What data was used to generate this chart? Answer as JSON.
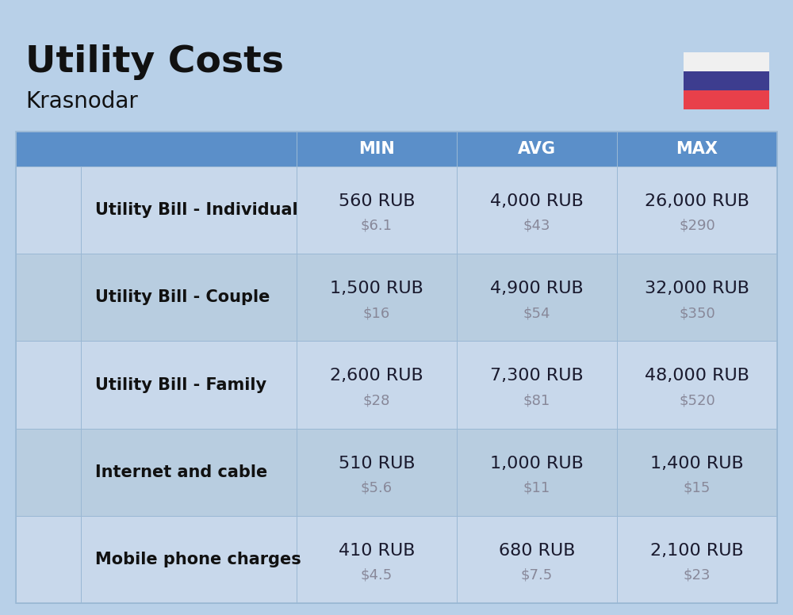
{
  "title": "Utility Costs",
  "subtitle": "Krasnodar",
  "background_color": "#b8d0e8",
  "header_bg_color": "#5b8fc9",
  "header_text_color": "#ffffff",
  "row_color_odd": "#c8d8eb",
  "row_color_even": "#b8cde0",
  "cell_border_color": "#9ab8d4",
  "columns": [
    "MIN",
    "AVG",
    "MAX"
  ],
  "rows": [
    {
      "label": "Utility Bill - Individual",
      "min_rub": "560 RUB",
      "min_usd": "$6.1",
      "avg_rub": "4,000 RUB",
      "avg_usd": "$43",
      "max_rub": "26,000 RUB",
      "max_usd": "$290"
    },
    {
      "label": "Utility Bill - Couple",
      "min_rub": "1,500 RUB",
      "min_usd": "$16",
      "avg_rub": "4,900 RUB",
      "avg_usd": "$54",
      "max_rub": "32,000 RUB",
      "max_usd": "$350"
    },
    {
      "label": "Utility Bill - Family",
      "min_rub": "2,600 RUB",
      "min_usd": "$28",
      "avg_rub": "7,300 RUB",
      "avg_usd": "$81",
      "max_rub": "48,000 RUB",
      "max_usd": "$520"
    },
    {
      "label": "Internet and cable",
      "min_rub": "510 RUB",
      "min_usd": "$5.6",
      "avg_rub": "1,000 RUB",
      "avg_usd": "$11",
      "max_rub": "1,400 RUB",
      "max_usd": "$15"
    },
    {
      "label": "Mobile phone charges",
      "min_rub": "410 RUB",
      "min_usd": "$4.5",
      "avg_rub": "680 RUB",
      "avg_usd": "$7.5",
      "max_rub": "2,100 RUB",
      "max_usd": "$23"
    }
  ],
  "flag_white": "#f0f0f0",
  "flag_blue": "#3d3d8f",
  "flag_red": "#e8404a",
  "title_fontsize": 34,
  "subtitle_fontsize": 20,
  "header_fontsize": 15,
  "label_fontsize": 15,
  "value_fontsize": 16,
  "usd_fontsize": 13,
  "value_color": "#1a1a2e",
  "usd_color": "#888899",
  "label_color": "#111111"
}
